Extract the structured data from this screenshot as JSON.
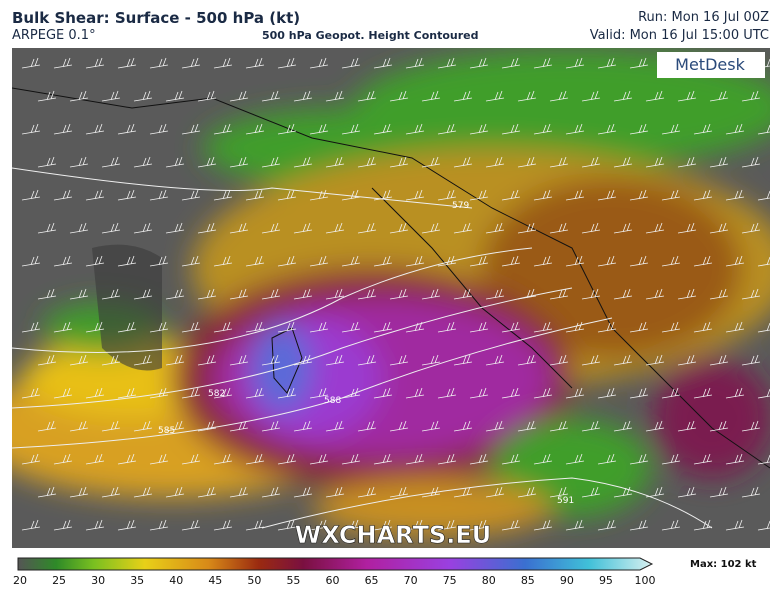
{
  "header": {
    "title": "Bulk Shear: Surface - 500 hPa (kt)",
    "model": "ARPEGE 0.1°",
    "subtitle": "500 hPa Geopot. Height Contoured",
    "run": "Run: Mon 16 Jul 00Z",
    "valid": "Valid: Mon 16 Jul 15:00 UTC"
  },
  "map": {
    "logo": "MetDesk",
    "watermark": "WXCHARTS.EU",
    "contour_labels": [
      "579",
      "582",
      "585",
      "588",
      "591"
    ]
  },
  "colorbar": {
    "ticks": [
      20,
      25,
      30,
      35,
      40,
      45,
      50,
      55,
      60,
      65,
      70,
      75,
      80,
      85,
      90,
      95,
      100
    ],
    "max_label": "Max: 102 kt"
  }
}
